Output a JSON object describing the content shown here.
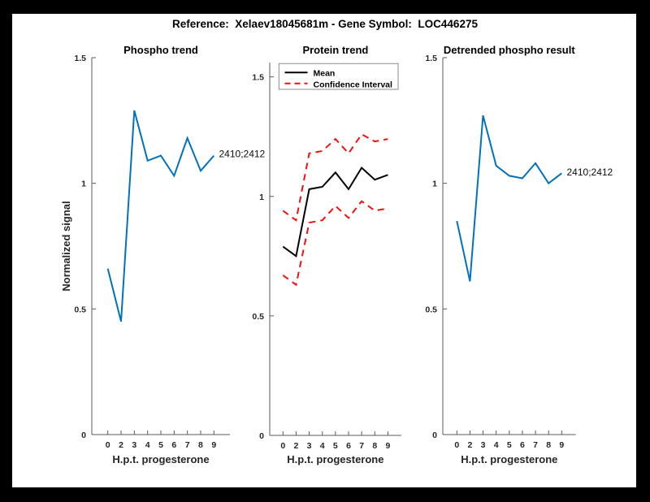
{
  "figure": {
    "title": "Reference:  Xelaev18045681m - Gene Symbol:  LOC446275"
  },
  "colors": {
    "blue": "#0072bd",
    "red": "#f20f0f",
    "black": "#000000",
    "axis": "#595959",
    "label": "#262626",
    "frame_background": "#000000",
    "canvas_background": "#ffffff",
    "legend_border": "#8c8c8c"
  },
  "chart_data": [
    {
      "type": "line",
      "title": "Phospho trend",
      "xlabel": "H.p.t. progesterone",
      "ylabel": "Normalized signal",
      "x_ticklabels": [
        "0",
        "2",
        "3",
        "4",
        "5",
        "6",
        "7",
        "8",
        "9"
      ],
      "y_ticks": [
        0,
        0.5,
        1,
        1.5
      ],
      "y_ticklabels": [
        "0",
        "0.5",
        "1",
        "1.5"
      ],
      "ylim": [
        0,
        1.5
      ],
      "grid": false,
      "annotation": "2410;2412",
      "series": [
        {
          "name": "phospho-signal",
          "color_key": "blue",
          "dashed": false,
          "values": [
            0.66,
            0.45,
            1.29,
            1.09,
            1.11,
            1.03,
            1.18,
            1.05,
            1.11
          ]
        }
      ]
    },
    {
      "type": "line",
      "title": "Protein trend",
      "xlabel": "H.p.t. progesterone",
      "ylabel": "",
      "x_ticklabels": [
        "0",
        "2",
        "3",
        "4",
        "5",
        "6",
        "7",
        "8",
        "9"
      ],
      "y_ticks": [
        0,
        0.5,
        1,
        1.5
      ],
      "y_ticklabels": [
        "0",
        "0.5",
        "1",
        "1.5"
      ],
      "ylim": [
        0,
        1.56
      ],
      "grid": false,
      "legend": [
        "Mean",
        "Confidence Interval"
      ],
      "legend_position": "top-left",
      "series": [
        {
          "name": "mean",
          "color_key": "black",
          "dashed": false,
          "values": [
            0.79,
            0.75,
            1.03,
            1.04,
            1.1,
            1.03,
            1.12,
            1.07,
            1.09
          ]
        },
        {
          "name": "confidence-upper",
          "color_key": "red",
          "dashed": true,
          "values": [
            0.94,
            0.9,
            1.18,
            1.19,
            1.24,
            1.18,
            1.26,
            1.23,
            1.24
          ]
        },
        {
          "name": "confidence-lower",
          "color_key": "red",
          "dashed": true,
          "values": [
            0.67,
            0.63,
            0.89,
            0.9,
            0.96,
            0.91,
            0.98,
            0.94,
            0.95
          ]
        }
      ]
    },
    {
      "type": "line",
      "title": "Detrended phospho result",
      "xlabel": "H.p.t. progesterone",
      "ylabel": "",
      "x_ticklabels": [
        "0",
        "2",
        "3",
        "4",
        "5",
        "6",
        "7",
        "8",
        "9"
      ],
      "y_ticks": [
        0,
        0.5,
        1,
        1.5
      ],
      "y_ticklabels": [
        "0",
        "0.5",
        "1",
        "1.5"
      ],
      "ylim": [
        0,
        1.5
      ],
      "grid": false,
      "annotation": "2410;2412",
      "series": [
        {
          "name": "detrended-phospho",
          "color_key": "blue",
          "dashed": false,
          "values": [
            0.85,
            0.61,
            1.27,
            1.07,
            1.03,
            1.02,
            1.08,
            1.0,
            1.04
          ]
        }
      ]
    }
  ]
}
